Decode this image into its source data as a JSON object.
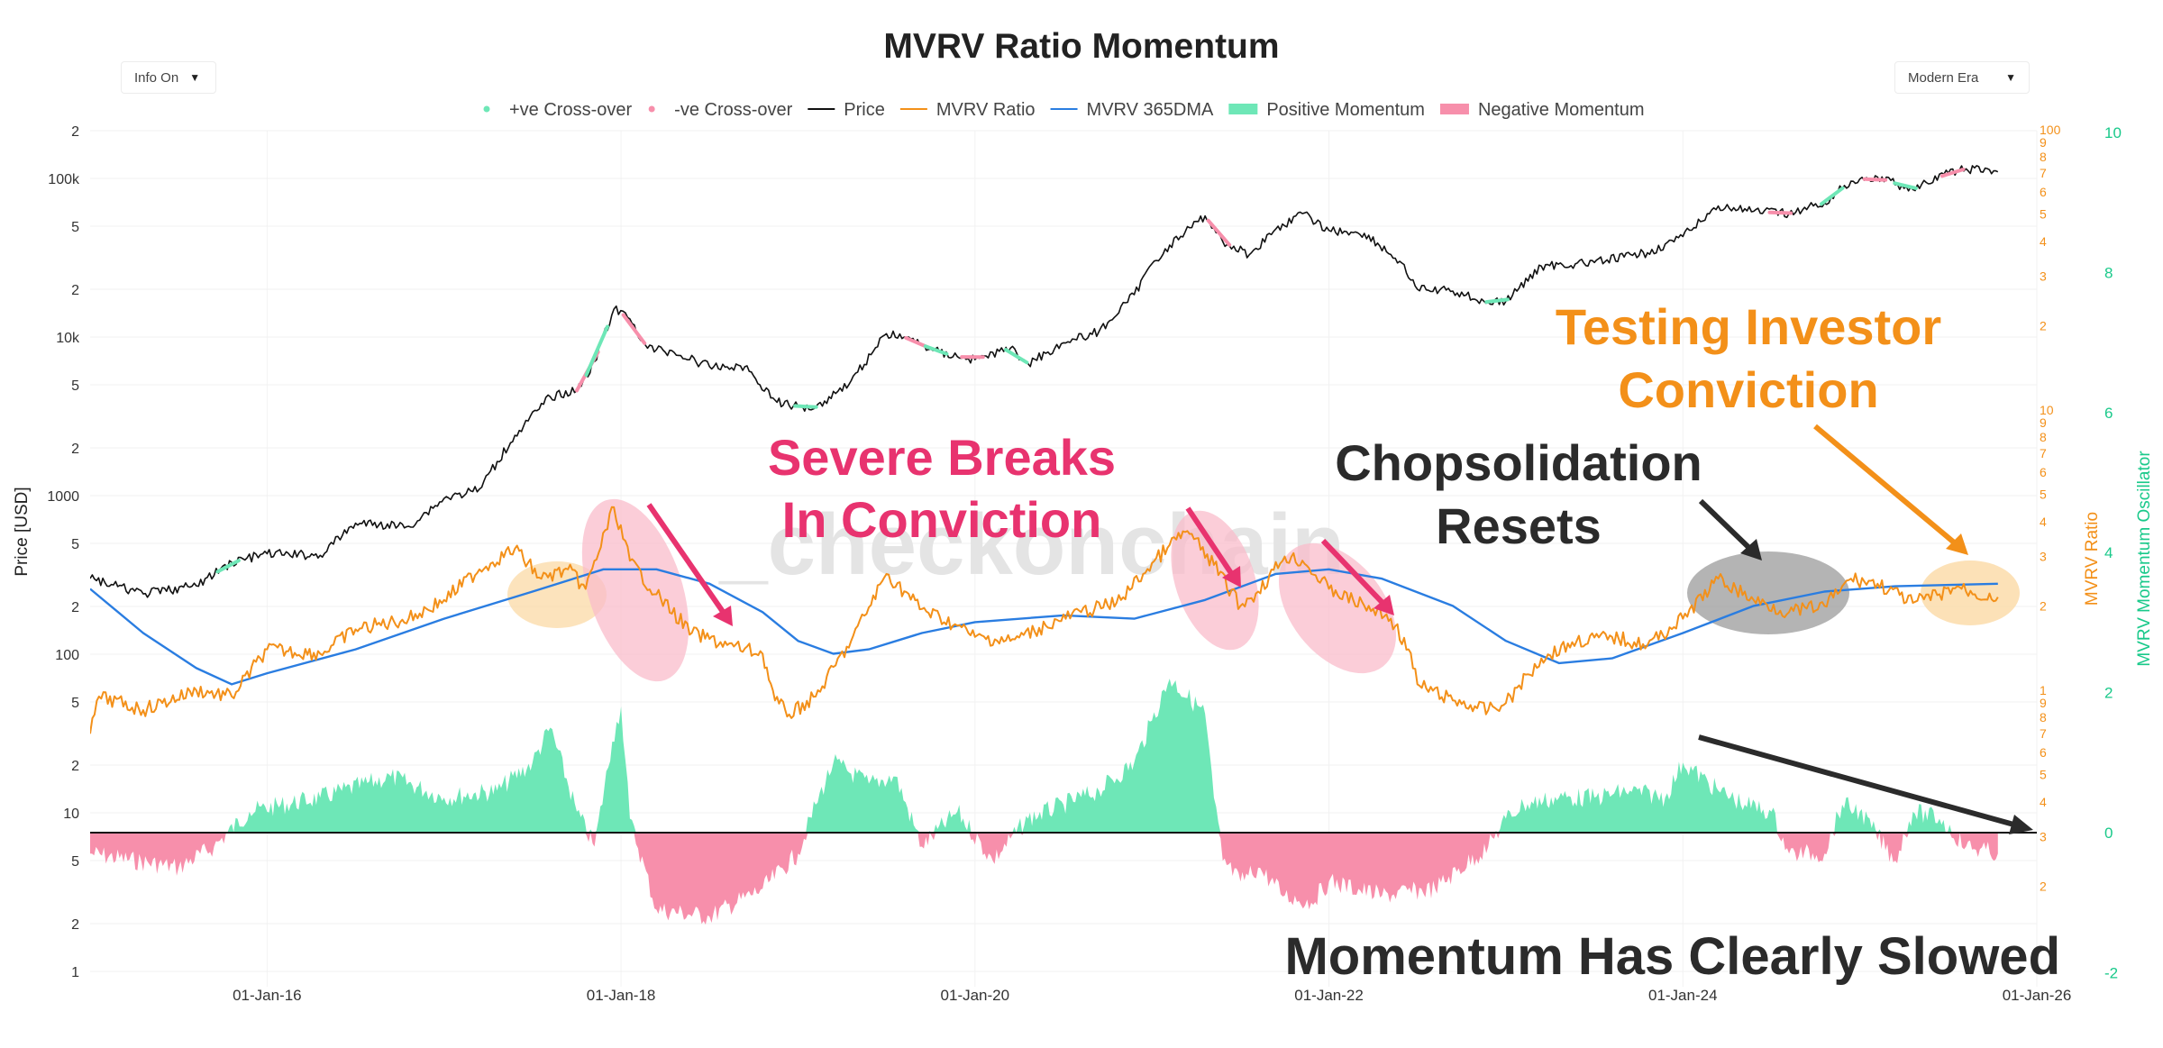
{
  "header": {
    "info_dropdown": "Info On",
    "era_dropdown": "Modern Era"
  },
  "colors": {
    "price": "#111111",
    "mvrv": "#f39019",
    "dma": "#2a7de1",
    "positive": "#6ee7b7",
    "negative": "#f78fab",
    "magenta_text": "#e8336f",
    "orange_text": "#f39019",
    "dark_text": "#2b2b2b",
    "oscillator_axis": "#19c98a"
  },
  "annotations": {
    "severe_line1": "Severe Breaks",
    "severe_line2": "In Conviction",
    "chop_line1": "Chopsolidation",
    "chop_line2": "Resets",
    "testing_line1": "Testing Investor",
    "testing_line2": "Conviction",
    "momentum": "Momentum Has Clearly Slowed",
    "watermark": "_checkonchain"
  },
  "chart_data": {
    "type": "line",
    "title": "MVRV Ratio Momentum",
    "legend": [
      {
        "name": "+ve Cross-over",
        "style": "dot",
        "color": "#6ee7b7"
      },
      {
        "name": "-ve Cross-over",
        "style": "dot",
        "color": "#f78fab"
      },
      {
        "name": "Price",
        "style": "line",
        "color": "#111111"
      },
      {
        "name": "MVRV Ratio",
        "style": "line",
        "color": "#f39019"
      },
      {
        "name": "MVRV 365DMA",
        "style": "line",
        "color": "#2a7de1"
      },
      {
        "name": "Positive Momentum",
        "style": "area",
        "color": "#6ee7b7"
      },
      {
        "name": "Negative Momentum",
        "style": "area",
        "color": "#f78fab"
      }
    ],
    "x_axis": {
      "ticks": [
        "01-Jan-16",
        "01-Jan-18",
        "01-Jan-20",
        "01-Jan-22",
        "01-Jan-24",
        "01-Jan-26"
      ],
      "range": [
        2015.0,
        2026.0
      ]
    },
    "y_price": {
      "label": "Price [USD]",
      "scale": "log",
      "range": [
        1,
        200000
      ],
      "ticks": [
        {
          "v": 1,
          "t": "1"
        },
        {
          "v": 2,
          "t": "2"
        },
        {
          "v": 5,
          "t": "5"
        },
        {
          "v": 10,
          "t": "10"
        },
        {
          "v": 20,
          "t": "2"
        },
        {
          "v": 50,
          "t": "5"
        },
        {
          "v": 100,
          "t": "100"
        },
        {
          "v": 200,
          "t": "2"
        },
        {
          "v": 500,
          "t": "5"
        },
        {
          "v": 1000,
          "t": "1000"
        },
        {
          "v": 2000,
          "t": "2"
        },
        {
          "v": 5000,
          "t": "5"
        },
        {
          "v": 10000,
          "t": "10k"
        },
        {
          "v": 20000,
          "t": "2"
        },
        {
          "v": 50000,
          "t": "5"
        },
        {
          "v": 100000,
          "t": "100k"
        },
        {
          "v": 200000,
          "t": "2"
        }
      ]
    },
    "y_mvrv": {
      "label": "MVRV Ratio",
      "scale": "log",
      "ticks": [
        {
          "v": 0.2,
          "t": "2"
        },
        {
          "v": 0.3,
          "t": "3"
        },
        {
          "v": 0.4,
          "t": "4"
        },
        {
          "v": 0.5,
          "t": "5"
        },
        {
          "v": 0.6,
          "t": "6"
        },
        {
          "v": 0.7,
          "t": "7"
        },
        {
          "v": 0.8,
          "t": "8"
        },
        {
          "v": 0.9,
          "t": "9"
        },
        {
          "v": 1,
          "t": "1"
        },
        {
          "v": 2,
          "t": "2"
        },
        {
          "v": 3,
          "t": "3"
        },
        {
          "v": 4,
          "t": "4"
        },
        {
          "v": 5,
          "t": "5"
        },
        {
          "v": 6,
          "t": "6"
        },
        {
          "v": 7,
          "t": "7"
        },
        {
          "v": 8,
          "t": "8"
        },
        {
          "v": 9,
          "t": "9"
        },
        {
          "v": 10,
          "t": "10"
        },
        {
          "v": 20,
          "t": "2"
        },
        {
          "v": 30,
          "t": "3"
        },
        {
          "v": 40,
          "t": "4"
        },
        {
          "v": 50,
          "t": "5"
        },
        {
          "v": 60,
          "t": "6"
        },
        {
          "v": 70,
          "t": "7"
        },
        {
          "v": 80,
          "t": "8"
        },
        {
          "v": 90,
          "t": "9"
        },
        {
          "v": 100,
          "t": "100"
        }
      ]
    },
    "y_osc": {
      "label": "MVRV Momentum Oscillator",
      "range": [
        -2,
        10
      ],
      "ticks": [
        -2,
        0,
        2,
        4,
        6,
        8,
        10
      ]
    },
    "series": {
      "price": {
        "name": "Price",
        "x": [
          2015.0,
          2015.3,
          2015.6,
          2015.8,
          2016.0,
          2016.3,
          2016.5,
          2016.8,
          2017.0,
          2017.2,
          2017.4,
          2017.6,
          2017.75,
          2017.85,
          2017.96,
          2018.05,
          2018.15,
          2018.3,
          2018.5,
          2018.7,
          2018.87,
          2018.95,
          2019.1,
          2019.3,
          2019.5,
          2019.6,
          2019.8,
          2020.0,
          2020.2,
          2020.3,
          2020.5,
          2020.7,
          2020.9,
          2021.0,
          2021.1,
          2021.3,
          2021.4,
          2021.55,
          2021.7,
          2021.85,
          2022.0,
          2022.2,
          2022.4,
          2022.5,
          2022.7,
          2022.9,
          2023.0,
          2023.2,
          2023.5,
          2023.8,
          2024.0,
          2024.2,
          2024.4,
          2024.6,
          2024.8,
          2024.95,
          2025.1,
          2025.3,
          2025.5,
          2025.6,
          2025.78
        ],
        "values": [
          300,
          240,
          270,
          380,
          430,
          420,
          670,
          640,
          960,
          1100,
          2400,
          4200,
          4600,
          7000,
          15000,
          13000,
          8500,
          8000,
          6500,
          6500,
          4000,
          3700,
          3600,
          5300,
          10500,
          10000,
          8000,
          7200,
          8500,
          6800,
          9200,
          10800,
          18500,
          29000,
          38000,
          58000,
          40000,
          33000,
          48000,
          60000,
          47000,
          45000,
          30000,
          20000,
          19500,
          16500,
          16800,
          28000,
          29500,
          34000,
          43000,
          67000,
          62000,
          60000,
          70000,
          96000,
          102000,
          85000,
          108000,
          115000,
          110000
        ]
      },
      "mvrv": {
        "name": "MVRV Ratio",
        "x": [
          2015.0,
          2015.05,
          2015.3,
          2015.6,
          2015.8,
          2016.0,
          2016.3,
          2016.5,
          2016.8,
          2017.0,
          2017.2,
          2017.4,
          2017.55,
          2017.7,
          2017.8,
          2017.96,
          2018.05,
          2018.2,
          2018.4,
          2018.6,
          2018.8,
          2018.87,
          2018.95,
          2019.1,
          2019.3,
          2019.5,
          2019.7,
          2019.9,
          2020.0,
          2020.2,
          2020.4,
          2020.6,
          2020.8,
          2020.95,
          2021.1,
          2021.2,
          2021.35,
          2021.5,
          2021.6,
          2021.75,
          2021.85,
          2022.0,
          2022.2,
          2022.35,
          2022.45,
          2022.5,
          2022.7,
          2022.9,
          2023.0,
          2023.2,
          2023.4,
          2023.6,
          2023.8,
          2024.0,
          2024.2,
          2024.4,
          2024.6,
          2024.8,
          2024.95,
          2025.1,
          2025.3,
          2025.45,
          2025.55,
          2025.65,
          2025.78
        ],
        "values": [
          0.7,
          0.95,
          0.85,
          1.0,
          0.95,
          1.4,
          1.35,
          1.65,
          1.8,
          2.1,
          2.7,
          3.2,
          2.5,
          2.7,
          2.3,
          4.5,
          2.9,
          2.2,
          1.6,
          1.45,
          1.35,
          0.92,
          0.82,
          0.95,
          1.5,
          2.6,
          1.95,
          1.7,
          1.55,
          1.5,
          1.7,
          1.9,
          2.05,
          2.6,
          3.3,
          3.7,
          2.8,
          2.0,
          2.25,
          3.0,
          2.9,
          2.3,
          2.0,
          1.8,
          1.4,
          1.05,
          0.92,
          0.85,
          0.9,
          1.3,
          1.5,
          1.55,
          1.45,
          1.8,
          2.5,
          2.1,
          1.9,
          2.0,
          2.5,
          2.4,
          2.05,
          2.2,
          2.35,
          2.2,
          2.15
        ]
      },
      "mvrv_365dma": {
        "name": "MVRV 365DMA",
        "x": [
          2015.0,
          2015.3,
          2015.6,
          2015.8,
          2016.0,
          2016.5,
          2017.0,
          2017.5,
          2017.9,
          2018.2,
          2018.5,
          2018.8,
          2019.0,
          2019.2,
          2019.4,
          2019.7,
          2020.0,
          2020.5,
          2020.9,
          2021.3,
          2021.7,
          2022.0,
          2022.3,
          2022.7,
          2023.0,
          2023.3,
          2023.6,
          2024.0,
          2024.4,
          2024.8,
          2025.2,
          2025.78
        ],
        "values": [
          2.3,
          1.6,
          1.2,
          1.05,
          1.15,
          1.4,
          1.8,
          2.25,
          2.7,
          2.7,
          2.4,
          1.9,
          1.5,
          1.35,
          1.4,
          1.6,
          1.75,
          1.85,
          1.8,
          2.1,
          2.6,
          2.7,
          2.5,
          2.0,
          1.5,
          1.25,
          1.3,
          1.6,
          2.0,
          2.25,
          2.35,
          2.4
        ]
      },
      "momentum": {
        "name": "Momentum Oscillator",
        "x": [
          2015.0,
          2015.5,
          2015.7,
          2015.9,
          2016.3,
          2016.7,
          2017.0,
          2017.3,
          2017.5,
          2017.6,
          2017.75,
          2017.85,
          2017.95,
          2018.0,
          2018.05,
          2018.2,
          2018.5,
          2018.8,
          2019.0,
          2019.1,
          2019.2,
          2019.4,
          2019.55,
          2019.7,
          2019.9,
          2020.1,
          2020.3,
          2020.5,
          2020.7,
          2020.9,
          2021.0,
          2021.1,
          2021.3,
          2021.35,
          2021.4,
          2021.5,
          2021.6,
          2021.75,
          2021.9,
          2022.0,
          2022.3,
          2022.6,
          2022.9,
          2023.0,
          2023.1,
          2023.3,
          2023.5,
          2023.7,
          2023.9,
          2024.0,
          2024.2,
          2024.35,
          2024.5,
          2024.6,
          2024.8,
          2024.9,
          2025.0,
          2025.2,
          2025.3,
          2025.45,
          2025.6,
          2025.78
        ],
        "values": [
          -0.3,
          -0.5,
          -0.2,
          0.3,
          0.5,
          0.8,
          0.5,
          0.6,
          1.0,
          1.5,
          0.3,
          -0.2,
          1.3,
          1.8,
          0.2,
          -1.1,
          -1.2,
          -0.8,
          -0.3,
          0.4,
          1.0,
          0.7,
          0.8,
          -0.2,
          0.3,
          -0.4,
          0.2,
          0.4,
          0.6,
          1.0,
          1.6,
          2.2,
          1.7,
          0.5,
          -0.4,
          -0.7,
          -0.5,
          -0.9,
          -1.0,
          -0.7,
          -0.9,
          -0.8,
          -0.2,
          0.2,
          0.4,
          0.5,
          0.5,
          0.6,
          0.5,
          1.0,
          0.6,
          0.4,
          0.3,
          -0.3,
          -0.3,
          0.4,
          0.3,
          -0.4,
          0.3,
          0.2,
          -0.2,
          -0.3
        ]
      }
    }
  }
}
